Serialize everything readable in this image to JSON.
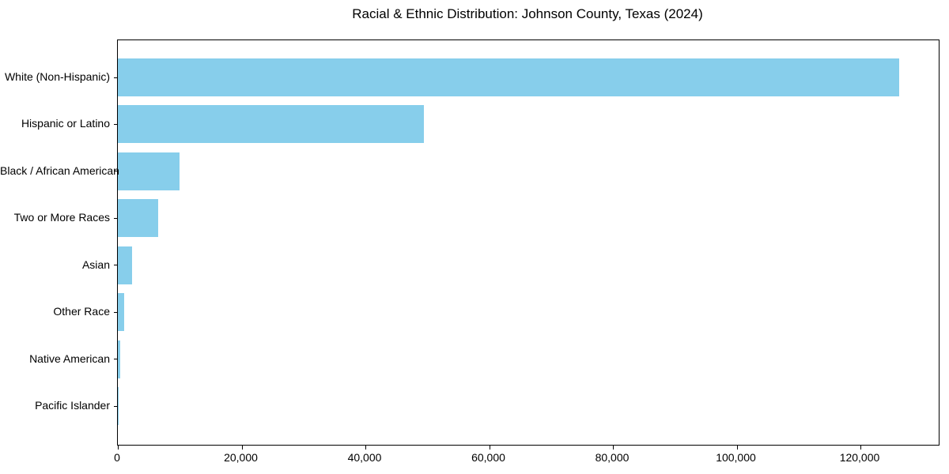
{
  "chart_data": {
    "type": "bar",
    "orientation": "horizontal",
    "title": "Racial & Ethnic Distribution: Johnson County, Texas (2024)",
    "categories": [
      "White (Non-Hispanic)",
      "Hispanic or Latino",
      "Black / African American",
      "Two or More Races",
      "Asian",
      "Other Race",
      "Native American",
      "Pacific Islander"
    ],
    "values": [
      126300,
      49500,
      10000,
      6500,
      2300,
      1000,
      400,
      100
    ],
    "xlabel": "",
    "ylabel": "",
    "xlim": [
      0,
      132650
    ],
    "x_ticks": [
      0,
      20000,
      40000,
      60000,
      80000,
      100000,
      120000
    ],
    "x_tick_labels": [
      "0",
      "20,000",
      "40,000",
      "60,000",
      "80,000",
      "100,000",
      "120,000"
    ],
    "bar_color": "#87CEEB",
    "axis_color": "#000000",
    "text_color": "#000000",
    "background_color": "#ffffff",
    "grid": false,
    "legend": "none"
  }
}
